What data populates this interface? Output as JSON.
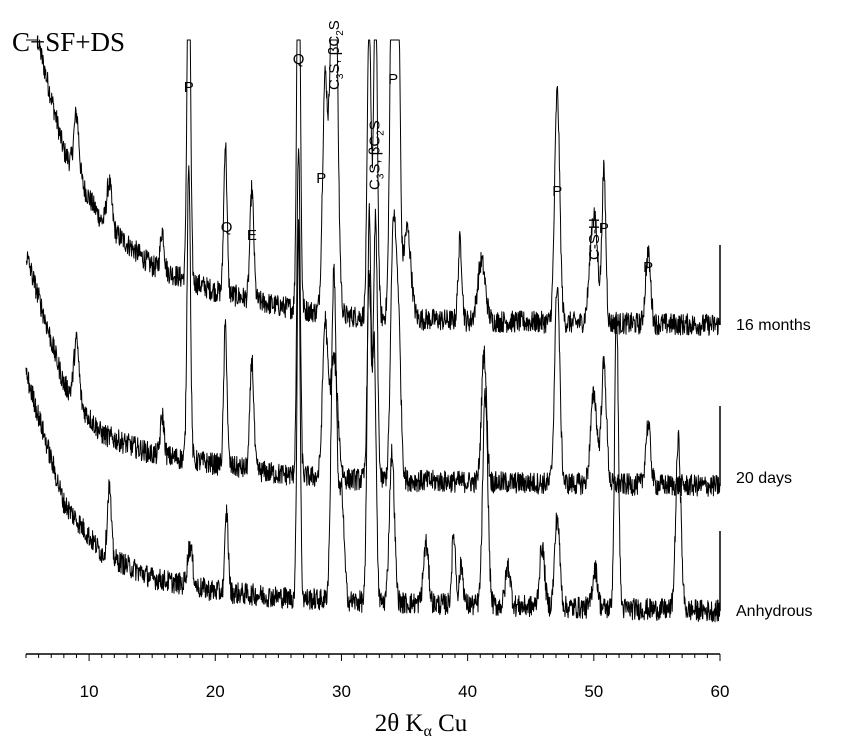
{
  "chart_data": {
    "type": "line",
    "title": "C+SF+DS",
    "xlabel": "2θ Kα Cu",
    "xlabel_parts": {
      "main": "2θ K",
      "sub": "α",
      "tail": " Cu"
    },
    "xlim": [
      5,
      60
    ],
    "xticks": [
      10,
      20,
      30,
      40,
      50,
      60
    ],
    "y_axis": "none",
    "grid": false,
    "legend": "none",
    "line_color": "#000000",
    "series": [
      {
        "name": "16 months",
        "baseline_points": [
          [
            5,
            620
          ],
          [
            8,
            460
          ],
          [
            11,
            390
          ],
          [
            15,
            345
          ],
          [
            20,
            320
          ],
          [
            25,
            305
          ],
          [
            30,
            295
          ],
          [
            40,
            290
          ],
          [
            50,
            288
          ],
          [
            60,
            286
          ]
        ],
        "peaks": [
          {
            "x": 9.0,
            "h": 60,
            "w": 0.2
          },
          {
            "x": 11.6,
            "h": 45,
            "w": 0.2
          },
          {
            "x": 15.8,
            "h": 40,
            "w": 0.15
          },
          {
            "x": 17.9,
            "h": 380,
            "w": 0.13
          },
          {
            "x": 20.8,
            "h": 150,
            "w": 0.13
          },
          {
            "x": 22.9,
            "h": 110,
            "w": 0.15
          },
          {
            "x": 26.6,
            "h": 460,
            "w": 0.13
          },
          {
            "x": 28.7,
            "h": 230,
            "w": 0.2
          },
          {
            "x": 29.4,
            "h": 490,
            "w": 0.25
          },
          {
            "x": 32.2,
            "h": 300,
            "w": 0.15
          },
          {
            "x": 32.7,
            "h": 330,
            "w": 0.15
          },
          {
            "x": 34.1,
            "h": 540,
            "w": 0.2
          },
          {
            "x": 34.5,
            "h": 310,
            "w": 0.15
          },
          {
            "x": 35.2,
            "h": 90,
            "w": 0.3
          },
          {
            "x": 39.4,
            "h": 80,
            "w": 0.15
          },
          {
            "x": 41.1,
            "h": 60,
            "w": 0.3
          },
          {
            "x": 47.1,
            "h": 230,
            "w": 0.2
          },
          {
            "x": 50.0,
            "h": 110,
            "w": 0.3
          },
          {
            "x": 50.8,
            "h": 150,
            "w": 0.15
          },
          {
            "x": 54.3,
            "h": 70,
            "w": 0.2
          }
        ]
      },
      {
        "name": "20 days",
        "baseline_points": [
          [
            5,
            550
          ],
          [
            8,
            420
          ],
          [
            11,
            370
          ],
          [
            15,
            350
          ],
          [
            20,
            340
          ],
          [
            25,
            330
          ],
          [
            30,
            325
          ],
          [
            40,
            322
          ],
          [
            50,
            320
          ],
          [
            60,
            318
          ]
        ],
        "peaks": [
          {
            "x": 9.0,
            "h": 60,
            "w": 0.2
          },
          {
            "x": 15.8,
            "h": 40,
            "w": 0.15
          },
          {
            "x": 17.9,
            "h": 300,
            "w": 0.13
          },
          {
            "x": 20.8,
            "h": 140,
            "w": 0.13
          },
          {
            "x": 22.9,
            "h": 110,
            "w": 0.15
          },
          {
            "x": 26.6,
            "h": 330,
            "w": 0.13
          },
          {
            "x": 28.7,
            "h": 150,
            "w": 0.2
          },
          {
            "x": 29.4,
            "h": 120,
            "w": 0.3
          },
          {
            "x": 32.2,
            "h": 200,
            "w": 0.15
          },
          {
            "x": 32.7,
            "h": 260,
            "w": 0.15
          },
          {
            "x": 34.1,
            "h": 240,
            "w": 0.2
          },
          {
            "x": 34.5,
            "h": 160,
            "w": 0.2
          },
          {
            "x": 41.3,
            "h": 130,
            "w": 0.2
          },
          {
            "x": 47.1,
            "h": 200,
            "w": 0.2
          },
          {
            "x": 50.0,
            "h": 90,
            "w": 0.25
          },
          {
            "x": 50.8,
            "h": 120,
            "w": 0.2
          },
          {
            "x": 54.3,
            "h": 60,
            "w": 0.2
          }
        ]
      },
      {
        "name": "Anhydrous",
        "baseline_points": [
          [
            5,
            460
          ],
          [
            8,
            330
          ],
          [
            11,
            280
          ],
          [
            15,
            255
          ],
          [
            20,
            242
          ],
          [
            25,
            236
          ],
          [
            30,
            232
          ],
          [
            40,
            228
          ],
          [
            50,
            225
          ],
          [
            60,
            222
          ]
        ],
        "peaks": [
          {
            "x": 11.6,
            "h": 70,
            "w": 0.15
          },
          {
            "x": 18.0,
            "h": 40,
            "w": 0.2
          },
          {
            "x": 20.9,
            "h": 80,
            "w": 0.13
          },
          {
            "x": 26.6,
            "h": 380,
            "w": 0.12
          },
          {
            "x": 29.4,
            "h": 330,
            "w": 0.2
          },
          {
            "x": 30.0,
            "h": 110,
            "w": 0.2
          },
          {
            "x": 32.2,
            "h": 380,
            "w": 0.15
          },
          {
            "x": 32.6,
            "h": 250,
            "w": 0.15
          },
          {
            "x": 34.0,
            "h": 150,
            "w": 0.2
          },
          {
            "x": 36.7,
            "h": 60,
            "w": 0.2
          },
          {
            "x": 38.9,
            "h": 70,
            "w": 0.15
          },
          {
            "x": 39.5,
            "h": 40,
            "w": 0.15
          },
          {
            "x": 41.4,
            "h": 210,
            "w": 0.2
          },
          {
            "x": 43.2,
            "h": 40,
            "w": 0.2
          },
          {
            "x": 45.9,
            "h": 60,
            "w": 0.2
          },
          {
            "x": 47.1,
            "h": 90,
            "w": 0.2
          },
          {
            "x": 50.1,
            "h": 40,
            "w": 0.2
          },
          {
            "x": 51.8,
            "h": 300,
            "w": 0.15
          },
          {
            "x": 56.7,
            "h": 170,
            "w": 0.2
          }
        ]
      }
    ],
    "series_labels": [
      "16 months",
      "20 days",
      "Anhydrous"
    ],
    "peak_annotations": [
      {
        "text": "P",
        "x": 17.9
      },
      {
        "text": "Q",
        "x": 20.9
      },
      {
        "text": "E",
        "x": 22.9
      },
      {
        "text": "Q",
        "x": 26.6
      },
      {
        "text": "P",
        "x": 28.4
      },
      {
        "text": "P",
        "x": 34.1
      },
      {
        "text": "P",
        "x": 47.1
      },
      {
        "text": "P",
        "x": 50.8
      },
      {
        "text": "P",
        "x": 54.3
      }
    ],
    "rotated_annotations": [
      {
        "x": 29.4,
        "parts": [
          [
            "C",
            ""
          ],
          [
            "3",
            "sub"
          ],
          [
            "S, βC",
            ""
          ],
          [
            "2",
            "sub"
          ],
          [
            "S",
            ""
          ]
        ]
      },
      {
        "x": 32.6,
        "parts": [
          [
            "C",
            ""
          ],
          [
            "3",
            "sub"
          ],
          [
            "S, βC",
            ""
          ],
          [
            "2",
            "sub"
          ],
          [
            "S",
            ""
          ]
        ]
      },
      {
        "x": 50.0,
        "parts": [
          [
            "C-S-H",
            ""
          ]
        ]
      }
    ]
  }
}
